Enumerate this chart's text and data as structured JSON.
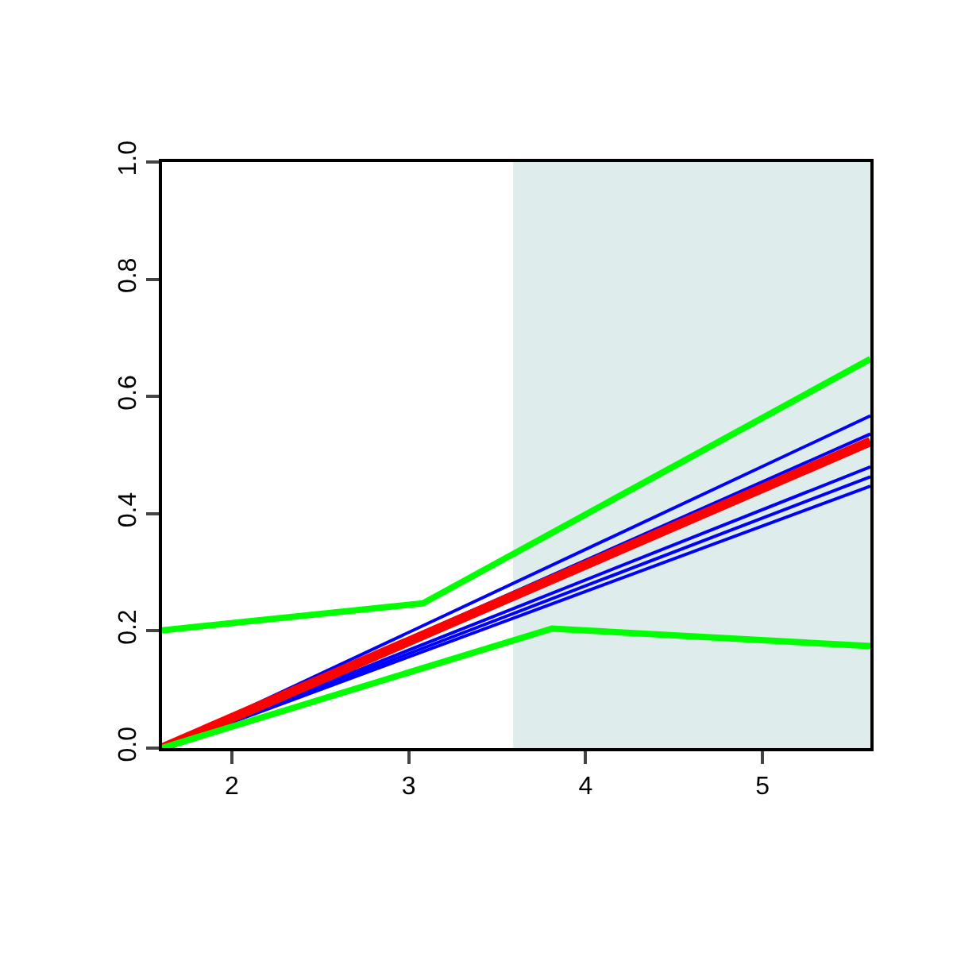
{
  "chart_data": {
    "type": "line",
    "xlim": [
      1.605,
      5.61
    ],
    "ylim": [
      0,
      1
    ],
    "xticks": [
      2,
      3,
      4,
      5
    ],
    "yticks": [
      {
        "value": 0,
        "label": "0.0"
      },
      0.2,
      0.4,
      0.6,
      0.8,
      {
        "value": 1,
        "label": "1.0"
      }
    ],
    "line_style": "solid",
    "marker": "none",
    "bands": [
      {
        "axis": "x",
        "from": 3.59,
        "to": 5.61,
        "color": "#dfecec"
      }
    ],
    "series": [
      {
        "color": "#0000ff",
        "x": [
          1.605,
          5.61
        ],
        "values": [
          0,
          0.567
        ]
      },
      {
        "color": "#0000ff",
        "x": [
          1.605,
          5.61
        ],
        "values": [
          0,
          0.536
        ]
      },
      {
        "color": "#0000ff",
        "x": [
          1.605,
          5.61
        ],
        "values": [
          0,
          0.48
        ]
      },
      {
        "color": "#0000ff",
        "x": [
          1.605,
          5.61
        ],
        "values": [
          0,
          0.463
        ]
      },
      {
        "color": "#0000ff",
        "x": [
          1.605,
          5.61
        ],
        "values": [
          0,
          0.447
        ]
      },
      {
        "color": "#ff0000",
        "x": [
          1.605,
          5.61
        ],
        "values": [
          0,
          0.523
        ]
      },
      {
        "color": "#00ff00",
        "x": [
          1.605,
          3.08,
          5.61
        ],
        "values": [
          0.201,
          0.247,
          0.664
        ]
      },
      {
        "color": "#00ff00",
        "x": [
          1.605,
          3.81,
          5.61
        ],
        "values": [
          0,
          0.204,
          0.174
        ]
      }
    ]
  }
}
